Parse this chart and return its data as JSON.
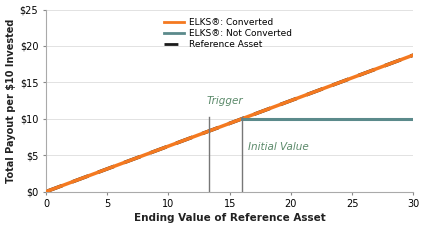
{
  "title": "",
  "xlabel": "Ending Value of Reference Asset",
  "ylabel": "Total Payout per $10 Invested",
  "xlim": [
    0,
    30
  ],
  "ylim": [
    0,
    25
  ],
  "xticks": [
    0,
    5,
    10,
    15,
    20,
    25,
    30
  ],
  "yticks": [
    0,
    5,
    10,
    15,
    20,
    25
  ],
  "ytick_labels": [
    "$0",
    "$5",
    "$10",
    "$15",
    "$20",
    "$25"
  ],
  "trigger_x": 13.333,
  "initial_value_x": 16.0,
  "cap_y": 10.0,
  "slope": 0.625,
  "converted_color": "#F47920",
  "not_converted_color": "#5B8A8B",
  "reference_color": "#1a1a1a",
  "vline_color": "#777777",
  "trigger_label": "Trigger",
  "initial_value_label": "Initial Value",
  "legend_converted": "ELKS®: Converted",
  "legend_not_converted": "ELKS®: Not Converted",
  "legend_reference": "Reference Asset",
  "background_color": "#ffffff",
  "grid_color": "#dddddd",
  "trigger_label_color": "#5B8A6A",
  "initial_value_label_color": "#5B8A6A"
}
